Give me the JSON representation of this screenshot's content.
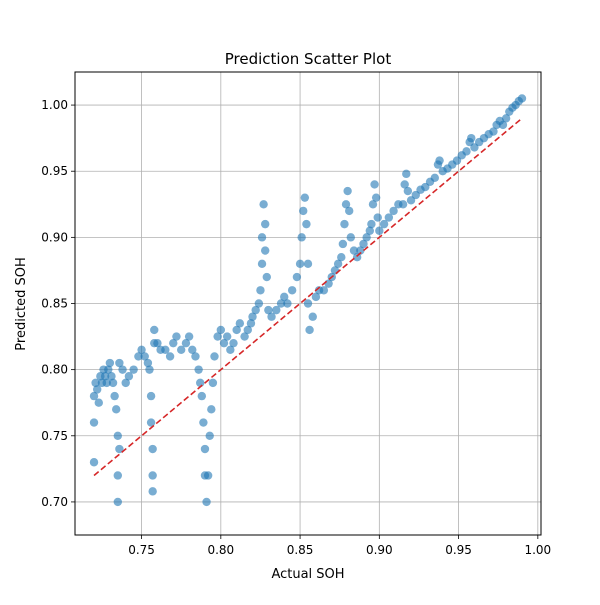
{
  "chart_data": {
    "type": "scatter",
    "title": "Prediction Scatter Plot",
    "xlabel": "Actual SOH",
    "ylabel": "Predicted SOH",
    "xlim": [
      0.708,
      1.002
    ],
    "ylim": [
      0.675,
      1.025
    ],
    "x_ticks": [
      0.75,
      0.8,
      0.85,
      0.9,
      0.95,
      1.0
    ],
    "x_tick_labels": [
      "0.75",
      "0.80",
      "0.85",
      "0.90",
      "0.95",
      "1.00"
    ],
    "y_ticks": [
      0.7,
      0.75,
      0.8,
      0.85,
      0.9,
      0.95,
      1.0
    ],
    "y_tick_labels": [
      "0.70",
      "0.75",
      "0.80",
      "0.85",
      "0.90",
      "0.95",
      "1.00"
    ],
    "grid": true,
    "marker_color": "#1f77b4",
    "reference_line": {
      "style": "dashed",
      "color": "#d62728",
      "x": [
        0.72,
        0.99
      ],
      "y": [
        0.72,
        0.99
      ]
    },
    "points": [
      [
        0.72,
        0.78
      ],
      [
        0.72,
        0.76
      ],
      [
        0.72,
        0.73
      ],
      [
        0.721,
        0.79
      ],
      [
        0.722,
        0.785
      ],
      [
        0.723,
        0.775
      ],
      [
        0.724,
        0.795
      ],
      [
        0.725,
        0.79
      ],
      [
        0.726,
        0.8
      ],
      [
        0.727,
        0.795
      ],
      [
        0.728,
        0.79
      ],
      [
        0.729,
        0.8
      ],
      [
        0.73,
        0.805
      ],
      [
        0.731,
        0.795
      ],
      [
        0.732,
        0.79
      ],
      [
        0.733,
        0.78
      ],
      [
        0.734,
        0.77
      ],
      [
        0.735,
        0.75
      ],
      [
        0.735,
        0.72
      ],
      [
        0.735,
        0.7
      ],
      [
        0.736,
        0.74
      ],
      [
        0.736,
        0.805
      ],
      [
        0.738,
        0.8
      ],
      [
        0.74,
        0.79
      ],
      [
        0.742,
        0.795
      ],
      [
        0.745,
        0.8
      ],
      [
        0.748,
        0.81
      ],
      [
        0.75,
        0.815
      ],
      [
        0.752,
        0.81
      ],
      [
        0.754,
        0.805
      ],
      [
        0.755,
        0.8
      ],
      [
        0.756,
        0.78
      ],
      [
        0.756,
        0.76
      ],
      [
        0.757,
        0.74
      ],
      [
        0.757,
        0.72
      ],
      [
        0.757,
        0.708
      ],
      [
        0.758,
        0.82
      ],
      [
        0.758,
        0.83
      ],
      [
        0.76,
        0.82
      ],
      [
        0.762,
        0.815
      ],
      [
        0.765,
        0.815
      ],
      [
        0.768,
        0.81
      ],
      [
        0.77,
        0.82
      ],
      [
        0.772,
        0.825
      ],
      [
        0.775,
        0.815
      ],
      [
        0.778,
        0.82
      ],
      [
        0.78,
        0.825
      ],
      [
        0.782,
        0.815
      ],
      [
        0.784,
        0.81
      ],
      [
        0.786,
        0.8
      ],
      [
        0.787,
        0.79
      ],
      [
        0.788,
        0.78
      ],
      [
        0.789,
        0.76
      ],
      [
        0.79,
        0.74
      ],
      [
        0.79,
        0.72
      ],
      [
        0.791,
        0.7
      ],
      [
        0.792,
        0.72
      ],
      [
        0.793,
        0.75
      ],
      [
        0.794,
        0.77
      ],
      [
        0.795,
        0.79
      ],
      [
        0.796,
        0.81
      ],
      [
        0.798,
        0.825
      ],
      [
        0.8,
        0.83
      ],
      [
        0.802,
        0.82
      ],
      [
        0.804,
        0.825
      ],
      [
        0.806,
        0.815
      ],
      [
        0.808,
        0.82
      ],
      [
        0.81,
        0.83
      ],
      [
        0.812,
        0.835
      ],
      [
        0.815,
        0.825
      ],
      [
        0.817,
        0.83
      ],
      [
        0.819,
        0.835
      ],
      [
        0.82,
        0.84
      ],
      [
        0.822,
        0.845
      ],
      [
        0.824,
        0.85
      ],
      [
        0.825,
        0.86
      ],
      [
        0.826,
        0.88
      ],
      [
        0.826,
        0.9
      ],
      [
        0.827,
        0.925
      ],
      [
        0.828,
        0.91
      ],
      [
        0.828,
        0.89
      ],
      [
        0.829,
        0.87
      ],
      [
        0.83,
        0.845
      ],
      [
        0.832,
        0.84
      ],
      [
        0.835,
        0.845
      ],
      [
        0.838,
        0.85
      ],
      [
        0.84,
        0.855
      ],
      [
        0.842,
        0.85
      ],
      [
        0.845,
        0.86
      ],
      [
        0.848,
        0.87
      ],
      [
        0.85,
        0.88
      ],
      [
        0.851,
        0.9
      ],
      [
        0.852,
        0.92
      ],
      [
        0.853,
        0.93
      ],
      [
        0.854,
        0.91
      ],
      [
        0.855,
        0.88
      ],
      [
        0.855,
        0.85
      ],
      [
        0.856,
        0.83
      ],
      [
        0.858,
        0.84
      ],
      [
        0.86,
        0.855
      ],
      [
        0.862,
        0.86
      ],
      [
        0.865,
        0.86
      ],
      [
        0.868,
        0.865
      ],
      [
        0.87,
        0.87
      ],
      [
        0.872,
        0.875
      ],
      [
        0.874,
        0.88
      ],
      [
        0.876,
        0.885
      ],
      [
        0.877,
        0.895
      ],
      [
        0.878,
        0.91
      ],
      [
        0.879,
        0.925
      ],
      [
        0.88,
        0.935
      ],
      [
        0.881,
        0.92
      ],
      [
        0.882,
        0.9
      ],
      [
        0.884,
        0.89
      ],
      [
        0.886,
        0.885
      ],
      [
        0.888,
        0.89
      ],
      [
        0.89,
        0.895
      ],
      [
        0.892,
        0.9
      ],
      [
        0.894,
        0.905
      ],
      [
        0.895,
        0.91
      ],
      [
        0.896,
        0.925
      ],
      [
        0.897,
        0.94
      ],
      [
        0.898,
        0.93
      ],
      [
        0.899,
        0.915
      ],
      [
        0.9,
        0.905
      ],
      [
        0.903,
        0.91
      ],
      [
        0.906,
        0.915
      ],
      [
        0.909,
        0.92
      ],
      [
        0.912,
        0.925
      ],
      [
        0.915,
        0.925
      ],
      [
        0.916,
        0.94
      ],
      [
        0.917,
        0.948
      ],
      [
        0.918,
        0.935
      ],
      [
        0.92,
        0.928
      ],
      [
        0.923,
        0.932
      ],
      [
        0.926,
        0.936
      ],
      [
        0.929,
        0.938
      ],
      [
        0.932,
        0.942
      ],
      [
        0.935,
        0.945
      ],
      [
        0.937,
        0.955
      ],
      [
        0.938,
        0.958
      ],
      [
        0.94,
        0.95
      ],
      [
        0.943,
        0.952
      ],
      [
        0.946,
        0.955
      ],
      [
        0.949,
        0.958
      ],
      [
        0.952,
        0.962
      ],
      [
        0.955,
        0.965
      ],
      [
        0.957,
        0.972
      ],
      [
        0.958,
        0.975
      ],
      [
        0.96,
        0.968
      ],
      [
        0.963,
        0.972
      ],
      [
        0.966,
        0.975
      ],
      [
        0.969,
        0.978
      ],
      [
        0.972,
        0.98
      ],
      [
        0.974,
        0.985
      ],
      [
        0.976,
        0.988
      ],
      [
        0.978,
        0.985
      ],
      [
        0.98,
        0.99
      ],
      [
        0.982,
        0.995
      ],
      [
        0.984,
        0.998
      ],
      [
        0.986,
        1.0
      ],
      [
        0.988,
        1.003
      ],
      [
        0.99,
        1.005
      ]
    ]
  }
}
